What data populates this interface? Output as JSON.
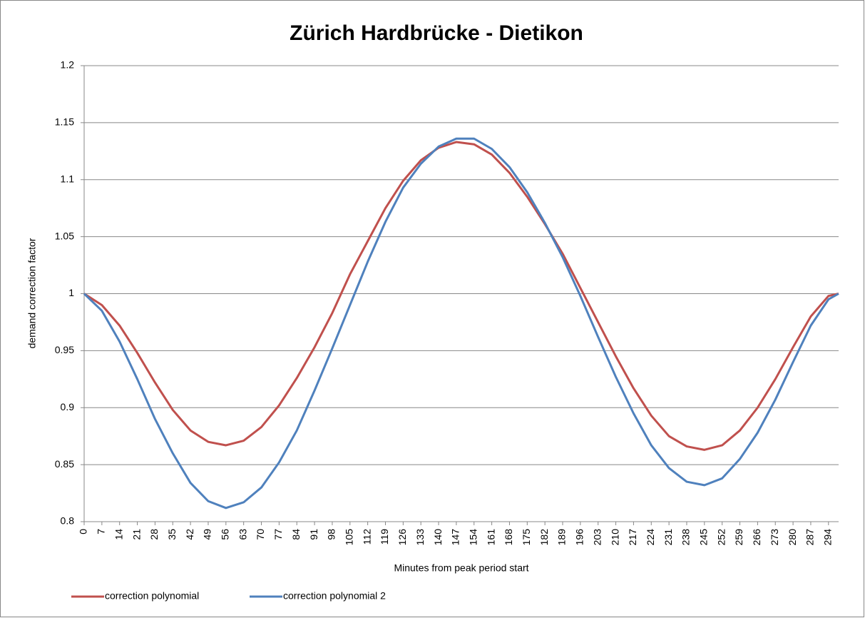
{
  "chart_data": {
    "type": "line",
    "title": "Zürich Hardbrücke - Dietikon",
    "x_label": "Minutes from peak period start",
    "y_label": "demand correction factor",
    "x": [
      0,
      7,
      14,
      21,
      28,
      35,
      42,
      49,
      56,
      63,
      70,
      77,
      84,
      91,
      98,
      105,
      112,
      119,
      126,
      133,
      140,
      147,
      154,
      161,
      168,
      175,
      182,
      189,
      196,
      203,
      210,
      217,
      224,
      231,
      238,
      245,
      252,
      259,
      266,
      273,
      280,
      287,
      294,
      298
    ],
    "series": [
      {
        "name": "correction polynomial",
        "color": "#c0504d",
        "values": [
          1.0,
          0.99,
          0.972,
          0.948,
          0.922,
          0.898,
          0.88,
          0.87,
          0.867,
          0.871,
          0.883,
          0.902,
          0.926,
          0.953,
          0.983,
          1.017,
          1.046,
          1.075,
          1.099,
          1.117,
          1.128,
          1.133,
          1.131,
          1.122,
          1.106,
          1.085,
          1.061,
          1.035,
          1.005,
          0.975,
          0.945,
          0.917,
          0.893,
          0.875,
          0.866,
          0.863,
          0.867,
          0.88,
          0.9,
          0.925,
          0.953,
          0.98,
          0.998,
          1.0
        ]
      },
      {
        "name": "correction polynomial 2",
        "color": "#4f81bd",
        "values": [
          1.0,
          0.985,
          0.958,
          0.925,
          0.89,
          0.86,
          0.834,
          0.818,
          0.812,
          0.817,
          0.83,
          0.852,
          0.88,
          0.915,
          0.952,
          0.99,
          1.028,
          1.063,
          1.093,
          1.114,
          1.129,
          1.136,
          1.136,
          1.127,
          1.111,
          1.089,
          1.062,
          1.032,
          0.998,
          0.962,
          0.927,
          0.895,
          0.867,
          0.847,
          0.835,
          0.832,
          0.838,
          0.855,
          0.878,
          0.907,
          0.94,
          0.972,
          0.995,
          1.0
        ]
      }
    ],
    "xlim": [
      0,
      298
    ],
    "xticks": [
      0,
      7,
      14,
      21,
      28,
      35,
      42,
      49,
      56,
      63,
      70,
      77,
      84,
      91,
      98,
      105,
      112,
      119,
      126,
      133,
      140,
      147,
      154,
      161,
      168,
      175,
      182,
      189,
      196,
      203,
      210,
      217,
      224,
      231,
      238,
      245,
      252,
      259,
      266,
      273,
      280,
      287,
      294
    ],
    "ylim": [
      0.8,
      1.2
    ],
    "yticks": [
      0.8,
      0.85,
      0.9,
      0.95,
      1,
      1.05,
      1.1,
      1.15,
      1.2
    ],
    "grid": true,
    "legend": "bottom"
  }
}
